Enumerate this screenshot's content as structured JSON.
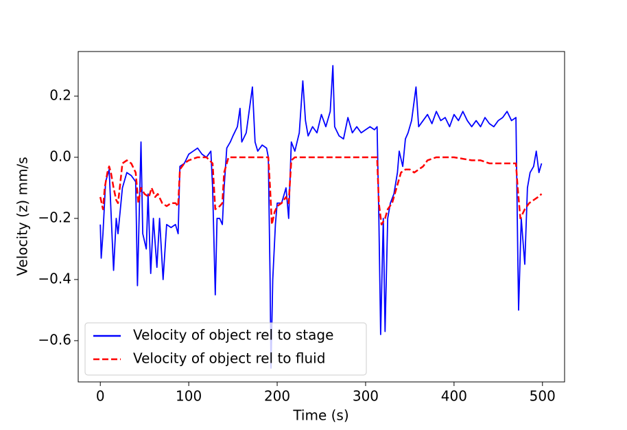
{
  "chart_data": {
    "type": "line",
    "xlabel": "Time (s)",
    "ylabel": "Velocity (z) mm/s",
    "xlim": [
      -25,
      525
    ],
    "xticks": [
      0,
      100,
      200,
      300,
      400,
      500
    ],
    "ylim": [
      -0.735,
      0.346
    ],
    "yticks": [
      {
        "value": -0.6,
        "label": "−0.6"
      },
      {
        "value": -0.4,
        "label": "−0.4"
      },
      {
        "value": -0.2,
        "label": "−0.2"
      },
      {
        "value": 0,
        "label": "0.0"
      },
      0.2
    ],
    "legend": "lower left",
    "series": [
      {
        "name": "Velocity of object rel to stage",
        "color": "#0000ff",
        "linestyle": "solid",
        "x": [
          0,
          1,
          3,
          6,
          10,
          15,
          18,
          20,
          25,
          30,
          35,
          40,
          42,
          46,
          48,
          52,
          54,
          57,
          60,
          64,
          67,
          71,
          75,
          80,
          85,
          88,
          90,
          95,
          100,
          105,
          110,
          115,
          120,
          125,
          127,
          130,
          132,
          135,
          138,
          140,
          143,
          147,
          150,
          155,
          158,
          160,
          165,
          172,
          175,
          178,
          183,
          188,
          190,
          192,
          193,
          195,
          198,
          200,
          205,
          210,
          213,
          216,
          220,
          225,
          229,
          232,
          235,
          240,
          245,
          250,
          255,
          260,
          263,
          265,
          270,
          275,
          280,
          285,
          290,
          295,
          300,
          305,
          310,
          313,
          315,
          317,
          320,
          322,
          325,
          328,
          332,
          336,
          338,
          342,
          345,
          348,
          352,
          357,
          360,
          365,
          370,
          375,
          380,
          385,
          390,
          395,
          400,
          405,
          410,
          415,
          420,
          425,
          430,
          435,
          440,
          445,
          450,
          455,
          460,
          465,
          470,
          472,
          473,
          476,
          480,
          483,
          486,
          490,
          493,
          496,
          499
        ],
        "values": [
          -0.22,
          -0.33,
          -0.25,
          -0.08,
          -0.04,
          -0.37,
          -0.2,
          -0.25,
          -0.1,
          -0.05,
          -0.06,
          -0.08,
          -0.42,
          0.05,
          -0.25,
          -0.3,
          -0.12,
          -0.38,
          -0.2,
          -0.36,
          -0.2,
          -0.4,
          -0.22,
          -0.23,
          -0.22,
          -0.25,
          -0.03,
          -0.02,
          0.01,
          0.02,
          0.03,
          0.01,
          0.0,
          0.02,
          -0.1,
          -0.45,
          -0.2,
          -0.2,
          -0.22,
          -0.1,
          0.03,
          0.05,
          0.07,
          0.1,
          0.16,
          0.05,
          0.08,
          0.23,
          0.05,
          0.02,
          0.04,
          0.03,
          0.0,
          -0.4,
          -0.69,
          -0.4,
          -0.22,
          -0.15,
          -0.15,
          -0.1,
          -0.2,
          0.05,
          0.02,
          0.08,
          0.25,
          0.12,
          0.07,
          0.1,
          0.08,
          0.14,
          0.1,
          0.15,
          0.3,
          0.1,
          0.07,
          0.06,
          0.13,
          0.08,
          0.1,
          0.08,
          0.09,
          0.1,
          0.09,
          0.1,
          -0.2,
          -0.58,
          -0.2,
          -0.57,
          -0.2,
          -0.15,
          -0.12,
          -0.05,
          0.02,
          -0.03,
          0.06,
          0.08,
          0.12,
          0.23,
          0.1,
          0.12,
          0.14,
          0.11,
          0.15,
          0.12,
          0.13,
          0.1,
          0.14,
          0.12,
          0.15,
          0.12,
          0.1,
          0.12,
          0.1,
          0.13,
          0.11,
          0.1,
          0.12,
          0.13,
          0.15,
          0.12,
          0.13,
          -0.3,
          -0.5,
          -0.2,
          -0.35,
          -0.1,
          -0.05,
          -0.03,
          0.02,
          -0.05,
          -0.02
        ]
      },
      {
        "name": "Velocity of object rel to fluid",
        "color": "#ff0000",
        "linestyle": "dashed",
        "x": [
          0,
          3,
          5,
          8,
          10,
          12,
          15,
          18,
          20,
          22,
          25,
          30,
          35,
          40,
          43,
          46,
          50,
          55,
          58,
          62,
          65,
          70,
          75,
          80,
          85,
          88,
          90,
          95,
          100,
          110,
          120,
          127,
          130,
          135,
          138,
          140,
          145,
          150,
          160,
          170,
          180,
          190,
          192,
          194,
          197,
          200,
          205,
          210,
          213,
          216,
          220,
          240,
          260,
          280,
          300,
          313,
          315,
          318,
          322,
          325,
          330,
          335,
          340,
          345,
          350,
          355,
          360,
          365,
          370,
          380,
          400,
          420,
          430,
          440,
          450,
          460,
          470,
          472,
          475,
          480,
          485,
          490,
          495,
          499
        ],
        "values": [
          -0.13,
          -0.17,
          -0.1,
          -0.05,
          -0.03,
          -0.05,
          -0.1,
          -0.14,
          -0.15,
          -0.1,
          -0.02,
          -0.01,
          -0.02,
          -0.05,
          -0.15,
          -0.1,
          -0.12,
          -0.13,
          -0.1,
          -0.13,
          -0.12,
          -0.15,
          -0.16,
          -0.15,
          -0.15,
          -0.16,
          -0.04,
          -0.02,
          -0.01,
          0.0,
          0.0,
          -0.02,
          -0.17,
          -0.16,
          -0.15,
          -0.05,
          0.0,
          0.0,
          0.0,
          0.0,
          0.0,
          0.0,
          -0.1,
          -0.22,
          -0.18,
          -0.16,
          -0.15,
          -0.13,
          -0.15,
          -0.01,
          0.0,
          0.0,
          0.0,
          0.0,
          0.0,
          0.0,
          -0.15,
          -0.22,
          -0.2,
          -0.17,
          -0.15,
          -0.1,
          -0.05,
          -0.04,
          -0.04,
          -0.05,
          -0.04,
          -0.03,
          -0.01,
          0.0,
          0.0,
          -0.01,
          -0.01,
          -0.02,
          -0.02,
          -0.02,
          -0.02,
          -0.1,
          -0.2,
          -0.17,
          -0.15,
          -0.14,
          -0.13,
          -0.12
        ]
      }
    ]
  }
}
